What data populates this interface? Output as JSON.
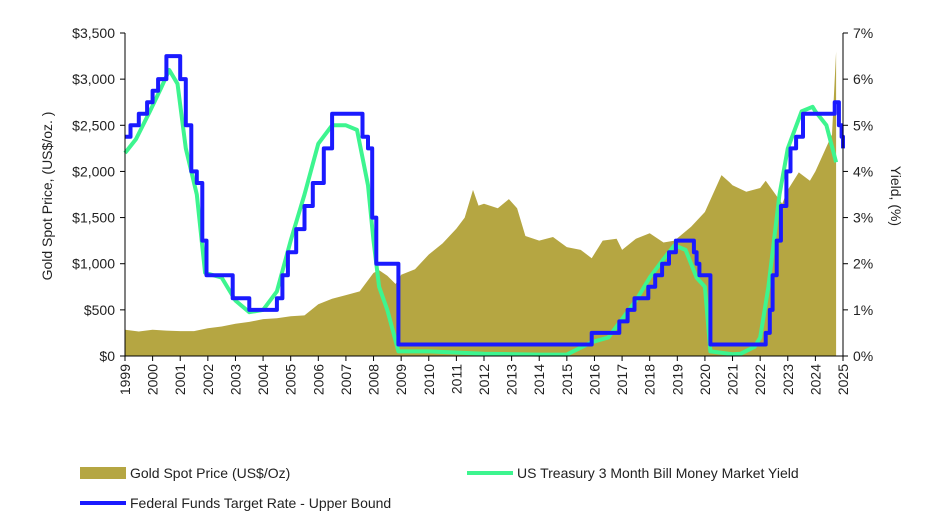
{
  "chart_data": {
    "type": "line",
    "title": "",
    "x_label": "",
    "y_label_left": "Gold Spot Price, (US$/oz. )",
    "y_label_right": "Yield, (%)",
    "x_ticks": [
      "1999",
      "2000",
      "2001",
      "2002",
      "2003",
      "2004",
      "2005",
      "2006",
      "2007",
      "2008",
      "2009",
      "2010",
      "2011",
      "2012",
      "2013",
      "2014",
      "2015",
      "2016",
      "2017",
      "2018",
      "2019",
      "2020",
      "2021",
      "2022",
      "2023",
      "2024",
      "2025"
    ],
    "y_left_ticks": [
      "$0",
      "$500",
      "$1,000",
      "$1,500",
      "$2,000",
      "$2,500",
      "$3,000",
      "$3,500"
    ],
    "y_right_ticks": [
      "0%",
      "1%",
      "2%",
      "3%",
      "4%",
      "5%",
      "6%",
      "7%"
    ],
    "x_range": [
      1999,
      2025
    ],
    "y_left_range": [
      0,
      3500
    ],
    "y_right_range": [
      0,
      7
    ],
    "grid": false,
    "legend_position": "bottom",
    "series": [
      {
        "name": "Gold Spot Price (US$/Oz)",
        "type": "area",
        "axis": "left",
        "color": "#b5a642",
        "x": [
          1999,
          1999.5,
          2000,
          2000.5,
          2001,
          2001.5,
          2002,
          2002.5,
          2003,
          2003.5,
          2004,
          2004.5,
          2005,
          2005.5,
          2006,
          2006.5,
          2007,
          2007.5,
          2008,
          2008.2,
          2008.5,
          2008.8,
          2009,
          2009.5,
          2010,
          2010.5,
          2011,
          2011.3,
          2011.6,
          2011.8,
          2012,
          2012.5,
          2012.9,
          2013.2,
          2013.5,
          2014,
          2014.5,
          2015,
          2015.5,
          2015.9,
          2016.3,
          2016.8,
          2017,
          2017.5,
          2018,
          2018.5,
          2018.9,
          2019.5,
          2020,
          2020.6,
          2020.9,
          2021,
          2021.5,
          2022,
          2022.2,
          2022.8,
          2023,
          2023.4,
          2023.8,
          2024,
          2024.3,
          2024.6,
          2024.75
        ],
        "y": [
          285,
          265,
          285,
          275,
          270,
          270,
          300,
          320,
          350,
          370,
          400,
          410,
          430,
          440,
          560,
          620,
          660,
          700,
          900,
          930,
          870,
          780,
          880,
          940,
          1100,
          1220,
          1380,
          1500,
          1800,
          1630,
          1650,
          1600,
          1700,
          1600,
          1300,
          1250,
          1290,
          1180,
          1150,
          1060,
          1250,
          1270,
          1150,
          1270,
          1330,
          1230,
          1250,
          1400,
          1560,
          1960,
          1880,
          1850,
          1780,
          1820,
          1900,
          1650,
          1800,
          1990,
          1900,
          2000,
          2200,
          2400,
          3300
        ]
      },
      {
        "name": "US Treasury 3 Month Bill Money Market Yield",
        "type": "line",
        "axis": "right",
        "color": "#3df58f",
        "x": [
          1999,
          1999.4,
          1999.9,
          2000.3,
          2000.6,
          2000.9,
          2001.2,
          2001.6,
          2001.9,
          2002.5,
          2003,
          2003.5,
          2004,
          2004.5,
          2005,
          2005.5,
          2006,
          2006.5,
          2007,
          2007.4,
          2007.8,
          2008,
          2008.2,
          2008.5,
          2008.9,
          2010,
          2012,
          2014,
          2015,
          2015.9,
          2016.5,
          2017,
          2017.5,
          2018,
          2018.5,
          2018.9,
          2019.3,
          2019.7,
          2020,
          2020.2,
          2021,
          2021.3,
          2021.8,
          2022,
          2022.3,
          2022.7,
          2023,
          2023.5,
          2023.9,
          2024,
          2024.4,
          2024.75
        ],
        "y": [
          4.4,
          4.7,
          5.3,
          5.8,
          6.2,
          5.9,
          4.5,
          3.5,
          1.8,
          1.7,
          1.2,
          0.95,
          1.0,
          1.4,
          2.5,
          3.5,
          4.6,
          5.0,
          5.0,
          4.9,
          3.7,
          2.5,
          1.5,
          1.0,
          0.1,
          0.1,
          0.05,
          0.03,
          0.03,
          0.3,
          0.4,
          0.8,
          1.2,
          1.7,
          2.1,
          2.4,
          2.3,
          1.7,
          1.5,
          0.1,
          0.04,
          0.05,
          0.2,
          0.4,
          1.5,
          3.5,
          4.5,
          5.3,
          5.4,
          5.3,
          5.0,
          4.2
        ]
      },
      {
        "name": "Federal Funds Target Rate - Upper Bound",
        "type": "step",
        "axis": "right",
        "color": "#1a1aff",
        "x": [
          1999,
          1999.2,
          1999.5,
          1999.8,
          2000,
          2000.2,
          2000.5,
          2000.9,
          2001,
          2001.2,
          2001.4,
          2001.6,
          2001.8,
          2001.95,
          2002.9,
          2003.5,
          2004.5,
          2004.7,
          2004.9,
          2005.2,
          2005.5,
          2005.8,
          2006.2,
          2006.5,
          2007.6,
          2007.8,
          2007.95,
          2008.1,
          2008.3,
          2008.9,
          2015.9,
          2016.9,
          2017.2,
          2017.45,
          2017.95,
          2018.2,
          2018.45,
          2018.7,
          2018.95,
          2019.6,
          2019.7,
          2019.8,
          2020.2,
          2022.2,
          2022.35,
          2022.45,
          2022.6,
          2022.75,
          2022.95,
          2023.1,
          2023.3,
          2023.55,
          2024.7,
          2024.85,
          2024.95,
          2025
        ],
        "y": [
          4.75,
          5.0,
          5.25,
          5.5,
          5.75,
          6.0,
          6.5,
          6.5,
          6.0,
          5.0,
          4.0,
          3.75,
          2.5,
          1.75,
          1.25,
          1.0,
          1.25,
          1.75,
          2.25,
          2.75,
          3.25,
          3.75,
          4.5,
          5.25,
          4.75,
          4.5,
          3.0,
          2.0,
          2.0,
          0.25,
          0.5,
          0.75,
          1.0,
          1.25,
          1.5,
          1.75,
          2.0,
          2.25,
          2.5,
          2.25,
          2.0,
          1.75,
          0.25,
          0.5,
          1.0,
          1.75,
          2.5,
          3.25,
          4.0,
          4.5,
          4.75,
          5.25,
          5.5,
          5.0,
          4.75,
          4.5
        ]
      }
    ]
  },
  "legend": {
    "gold": "Gold Spot Price (US$/Oz)",
    "tbill": "US Treasury 3 Month Bill Money Market Yield",
    "fed": "Federal Funds Target Rate - Upper Bound"
  }
}
